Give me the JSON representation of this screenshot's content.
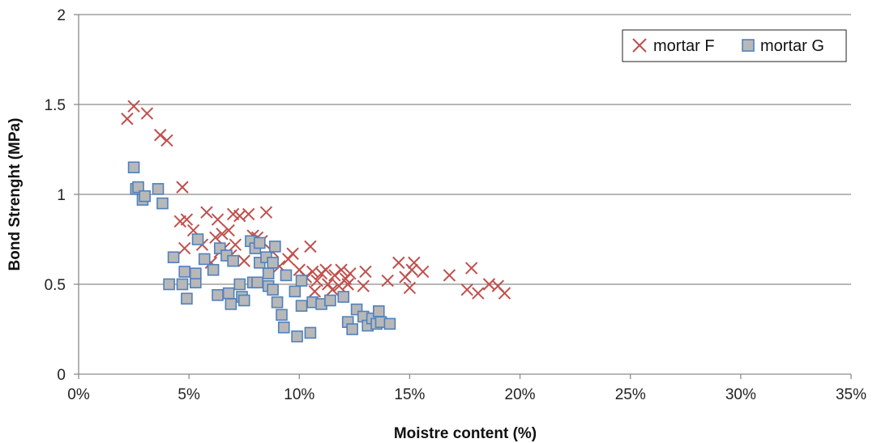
{
  "chart_data": {
    "type": "scatter",
    "title": "",
    "xlabel": "Moistre content (%)",
    "ylabel": "Bond Strenght (MPa)",
    "xlim": [
      0,
      0.35
    ],
    "ylim": [
      0,
      2
    ],
    "x_ticks": [
      "0%",
      "5%",
      "10%",
      "15%",
      "20%",
      "25%",
      "30%",
      "35%"
    ],
    "y_ticks": [
      "0",
      "0.5",
      "1",
      "1.5",
      "2"
    ],
    "x_tick_values": [
      0,
      0.05,
      0.1,
      0.15,
      0.2,
      0.25,
      0.3,
      0.35
    ],
    "y_tick_values": [
      0,
      0.5,
      1,
      1.5,
      2
    ],
    "grid": "horizontal",
    "legend_position": "top-right",
    "series": [
      {
        "name": "mortar F",
        "marker": "x",
        "color": "#c0504d",
        "points": [
          [
            0.022,
            1.42
          ],
          [
            0.025,
            1.49
          ],
          [
            0.031,
            1.45
          ],
          [
            0.037,
            1.33
          ],
          [
            0.04,
            1.3
          ],
          [
            0.047,
            1.04
          ],
          [
            0.046,
            0.85
          ],
          [
            0.049,
            0.86
          ],
          [
            0.052,
            0.8
          ],
          [
            0.048,
            0.7
          ],
          [
            0.058,
            0.9
          ],
          [
            0.063,
            0.86
          ],
          [
            0.065,
            0.78
          ],
          [
            0.062,
            0.76
          ],
          [
            0.068,
            0.8
          ],
          [
            0.07,
            0.89
          ],
          [
            0.073,
            0.88
          ],
          [
            0.077,
            0.89
          ],
          [
            0.071,
            0.72
          ],
          [
            0.066,
            0.7
          ],
          [
            0.056,
            0.72
          ],
          [
            0.06,
            0.62
          ],
          [
            0.064,
            0.68
          ],
          [
            0.069,
            0.66
          ],
          [
            0.075,
            0.63
          ],
          [
            0.079,
            0.77
          ],
          [
            0.081,
            0.76
          ],
          [
            0.085,
            0.9
          ],
          [
            0.083,
            0.74
          ],
          [
            0.088,
            0.68
          ],
          [
            0.091,
            0.6
          ],
          [
            0.095,
            0.64
          ],
          [
            0.097,
            0.67
          ],
          [
            0.1,
            0.58
          ],
          [
            0.103,
            0.54
          ],
          [
            0.105,
            0.71
          ],
          [
            0.106,
            0.57
          ],
          [
            0.108,
            0.52
          ],
          [
            0.11,
            0.56
          ],
          [
            0.112,
            0.58
          ],
          [
            0.107,
            0.46
          ],
          [
            0.113,
            0.5
          ],
          [
            0.116,
            0.55
          ],
          [
            0.118,
            0.49
          ],
          [
            0.115,
            0.47
          ],
          [
            0.121,
            0.53
          ],
          [
            0.123,
            0.56
          ],
          [
            0.119,
            0.58
          ],
          [
            0.122,
            0.5
          ],
          [
            0.13,
            0.57
          ],
          [
            0.129,
            0.49
          ],
          [
            0.14,
            0.52
          ],
          [
            0.145,
            0.62
          ],
          [
            0.148,
            0.54
          ],
          [
            0.151,
            0.58
          ],
          [
            0.152,
            0.62
          ],
          [
            0.15,
            0.48
          ],
          [
            0.156,
            0.57
          ],
          [
            0.168,
            0.55
          ],
          [
            0.176,
            0.47
          ],
          [
            0.178,
            0.59
          ],
          [
            0.181,
            0.45
          ],
          [
            0.186,
            0.5
          ],
          [
            0.19,
            0.49
          ],
          [
            0.193,
            0.45
          ]
        ]
      },
      {
        "name": "mortar G",
        "marker": "square",
        "color": "#4f81bd",
        "fill": "#b8b8b8",
        "points": [
          [
            0.025,
            1.15
          ],
          [
            0.026,
            1.03
          ],
          [
            0.027,
            1.04
          ],
          [
            0.029,
            0.97
          ],
          [
            0.03,
            0.99
          ],
          [
            0.036,
            1.03
          ],
          [
            0.038,
            0.95
          ],
          [
            0.041,
            0.5
          ],
          [
            0.043,
            0.65
          ],
          [
            0.047,
            0.5
          ],
          [
            0.048,
            0.57
          ],
          [
            0.049,
            0.42
          ],
          [
            0.053,
            0.51
          ],
          [
            0.054,
            0.75
          ],
          [
            0.053,
            0.56
          ],
          [
            0.057,
            0.64
          ],
          [
            0.061,
            0.58
          ],
          [
            0.063,
            0.44
          ],
          [
            0.064,
            0.7
          ],
          [
            0.067,
            0.66
          ],
          [
            0.068,
            0.45
          ],
          [
            0.069,
            0.39
          ],
          [
            0.07,
            0.63
          ],
          [
            0.073,
            0.5
          ],
          [
            0.074,
            0.43
          ],
          [
            0.075,
            0.41
          ],
          [
            0.078,
            0.74
          ],
          [
            0.079,
            0.51
          ],
          [
            0.08,
            0.7
          ],
          [
            0.082,
            0.73
          ],
          [
            0.082,
            0.62
          ],
          [
            0.081,
            0.51
          ],
          [
            0.085,
            0.65
          ],
          [
            0.086,
            0.56
          ],
          [
            0.086,
            0.49
          ],
          [
            0.088,
            0.62
          ],
          [
            0.088,
            0.47
          ],
          [
            0.089,
            0.71
          ],
          [
            0.09,
            0.4
          ],
          [
            0.092,
            0.33
          ],
          [
            0.093,
            0.26
          ],
          [
            0.094,
            0.55
          ],
          [
            0.098,
            0.46
          ],
          [
            0.099,
            0.21
          ],
          [
            0.101,
            0.38
          ],
          [
            0.101,
            0.52
          ],
          [
            0.105,
            0.23
          ],
          [
            0.106,
            0.4
          ],
          [
            0.11,
            0.39
          ],
          [
            0.114,
            0.41
          ],
          [
            0.12,
            0.43
          ],
          [
            0.122,
            0.29
          ],
          [
            0.124,
            0.25
          ],
          [
            0.126,
            0.36
          ],
          [
            0.129,
            0.32
          ],
          [
            0.131,
            0.27
          ],
          [
            0.133,
            0.31
          ],
          [
            0.135,
            0.28
          ],
          [
            0.136,
            0.35
          ],
          [
            0.137,
            0.29
          ],
          [
            0.141,
            0.28
          ]
        ]
      }
    ]
  }
}
